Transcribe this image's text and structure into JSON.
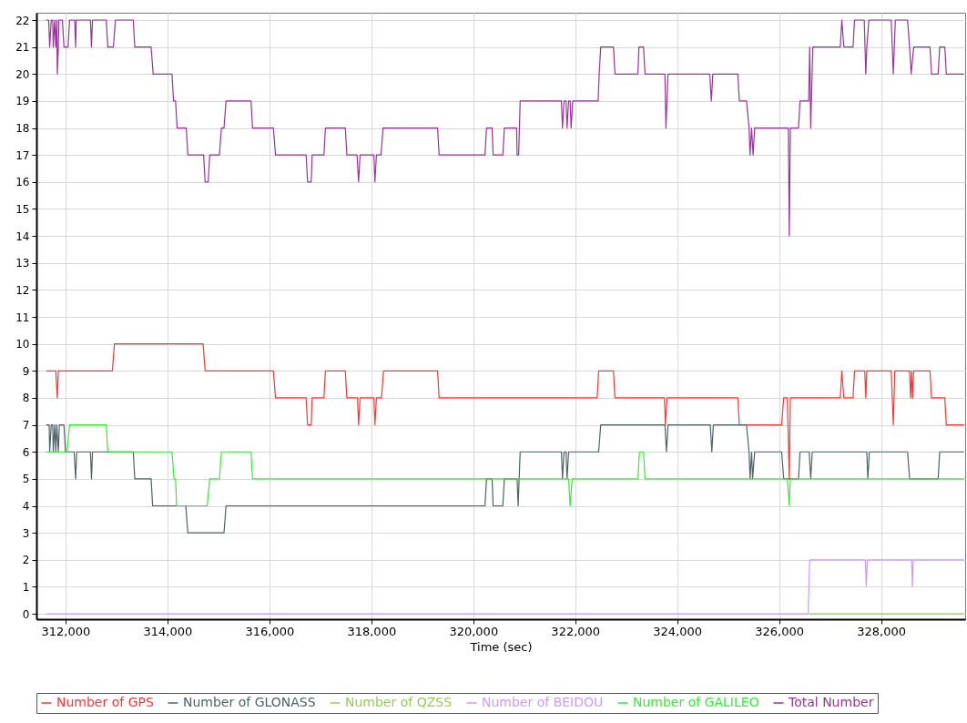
{
  "chart_data": {
    "type": "line",
    "xlabel": "Time (sec)",
    "xlim": [
      311430,
      329650
    ],
    "xticks": [
      {
        "value": 312000,
        "label": "312,000"
      },
      {
        "value": 314000,
        "label": "314,000"
      },
      {
        "value": 316000,
        "label": "316,000"
      },
      {
        "value": 318000,
        "label": "318,000"
      },
      {
        "value": 320000,
        "label": "320,000"
      },
      {
        "value": 322000,
        "label": "322,000"
      },
      {
        "value": 324000,
        "label": "324,000"
      },
      {
        "value": 326000,
        "label": "326,000"
      },
      {
        "value": 328000,
        "label": "328,000"
      }
    ],
    "ylim": [
      -0.2,
      22.27
    ],
    "yticks": [
      0,
      1,
      2,
      3,
      4,
      5,
      6,
      7,
      8,
      9,
      10,
      11,
      12,
      13,
      14,
      15,
      16,
      17,
      18,
      19,
      20,
      21,
      22
    ],
    "grid": true,
    "legend": "bottom",
    "marker": "none",
    "line_style": "solid",
    "series": [
      {
        "name": "Number of GPS",
        "color": "#ff3333",
        "x": [
          311630,
          311810,
          311840,
          311860,
          312920,
          312960,
          314700,
          314740,
          316080,
          316120,
          316720,
          316750,
          316820,
          316840,
          317070,
          317100,
          317490,
          317520,
          317730,
          317750,
          317780,
          318050,
          318070,
          318100,
          318200,
          318240,
          319300,
          319330,
          322430,
          322460,
          322750,
          322780,
          323750,
          323770,
          323800,
          325190,
          325220,
          326050,
          326090,
          326160,
          326200,
          326220,
          327200,
          327230,
          327270,
          327450,
          327480,
          327680,
          327700,
          327720,
          328200,
          328240,
          328270,
          328560,
          328580,
          328600,
          328620,
          328640,
          328960,
          328990,
          329250,
          329280,
          329620
        ],
        "values": [
          9,
          9,
          8,
          9,
          9,
          10,
          10,
          9,
          9,
          8,
          8,
          7,
          7,
          8,
          8,
          9,
          9,
          8,
          8,
          7,
          8,
          8,
          7,
          8,
          8,
          9,
          9,
          8,
          8,
          9,
          9,
          8,
          8,
          7,
          8,
          8,
          7,
          7,
          8,
          8,
          5,
          8,
          8,
          9,
          8,
          8,
          9,
          9,
          8,
          9,
          9,
          7,
          9,
          9,
          8,
          9,
          8,
          9,
          9,
          8,
          8,
          7,
          7
        ]
      },
      {
        "name": "Number of GLONASS",
        "color": "#4d6466",
        "x": [
          311630,
          311680,
          311690,
          311720,
          311750,
          311760,
          311790,
          311810,
          311830,
          311860,
          311880,
          311970,
          312000,
          312170,
          312200,
          312220,
          312490,
          312510,
          312530,
          313330,
          313360,
          313680,
          313710,
          314360,
          314400,
          315110,
          315150,
          320230,
          320260,
          320370,
          320390,
          320580,
          320610,
          320860,
          320880,
          320920,
          321730,
          321750,
          321780,
          321820,
          321840,
          321870,
          322460,
          322500,
          323760,
          323790,
          323820,
          324650,
          324680,
          324710,
          325360,
          325410,
          325430,
          325460,
          325480,
          325520,
          326050,
          326090,
          326380,
          326410,
          326590,
          326620,
          326650,
          327720,
          327740,
          327770,
          328520,
          328560,
          329120,
          329150,
          329620
        ],
        "values": [
          7,
          7,
          6,
          7,
          7,
          6,
          7,
          6,
          7,
          6,
          7,
          7,
          6,
          6,
          5,
          6,
          6,
          5,
          6,
          6,
          5,
          5,
          4,
          4,
          3,
          3,
          4,
          4,
          5,
          5,
          4,
          4,
          5,
          5,
          4,
          6,
          6,
          5,
          6,
          6,
          5,
          6,
          6,
          7,
          7,
          6,
          7,
          7,
          6,
          7,
          7,
          6,
          5,
          6,
          5,
          6,
          6,
          5,
          5,
          6,
          6,
          5,
          6,
          6,
          5,
          6,
          6,
          5,
          5,
          6,
          6
        ]
      },
      {
        "name": "Number of QZSS",
        "color": "#99cc55",
        "x": [
          326600,
          329620
        ],
        "values": [
          0,
          0
        ]
      },
      {
        "name": "Number of BEIDOU",
        "color": "#cc99ff",
        "x": [
          311630,
          326570,
          326600,
          327690,
          327710,
          327730,
          328600,
          328615,
          328630,
          329620
        ],
        "values": [
          0,
          0,
          2,
          2,
          1,
          2,
          2,
          1,
          2,
          2
        ]
      },
      {
        "name": "Number of GALILEO",
        "color": "#33ee33",
        "x": [
          311630,
          312030,
          312080,
          312800,
          312830,
          314090,
          314130,
          314160,
          314180,
          314780,
          314830,
          315020,
          315060,
          315640,
          315670,
          321870,
          321900,
          321940,
          323230,
          323260,
          323340,
          323370,
          326160,
          326200,
          326220,
          329620
        ],
        "values": [
          6,
          6,
          7,
          7,
          6,
          6,
          5,
          5,
          4,
          4,
          5,
          5,
          6,
          6,
          5,
          5,
          4,
          5,
          5,
          6,
          6,
          5,
          5,
          4,
          5,
          5
        ]
      },
      {
        "name": "Total Number",
        "color": "#993399",
        "x": [
          311630,
          311670,
          311690,
          311720,
          311750,
          311760,
          311790,
          311810,
          311830,
          311840,
          311860,
          311870,
          311940,
          311970,
          312050,
          312080,
          312180,
          312200,
          312210,
          312490,
          312510,
          312530,
          312800,
          312830,
          312940,
          312980,
          313330,
          313360,
          313680,
          313720,
          314090,
          314120,
          314160,
          314190,
          314370,
          314400,
          314710,
          314740,
          314800,
          314830,
          315020,
          315060,
          315110,
          315150,
          315640,
          315670,
          316080,
          316120,
          316720,
          316750,
          316820,
          316840,
          317070,
          317100,
          317490,
          317520,
          317720,
          317750,
          317780,
          318050,
          318070,
          318100,
          318190,
          318230,
          319300,
          319330,
          320230,
          320260,
          320370,
          320390,
          320580,
          320610,
          320850,
          320860,
          320890,
          320920,
          321730,
          321750,
          321780,
          321820,
          321840,
          321870,
          321900,
          321920,
          321950,
          322450,
          322470,
          322500,
          322750,
          322780,
          323230,
          323250,
          323340,
          323370,
          323760,
          323780,
          323820,
          324640,
          324670,
          324700,
          325190,
          325220,
          325360,
          325410,
          325430,
          325460,
          325490,
          325520,
          326180,
          326200,
          326220,
          326380,
          326410,
          326580,
          326600,
          326620,
          326660,
          327200,
          327230,
          327270,
          327450,
          327480,
          327670,
          327700,
          327720,
          327760,
          328200,
          328240,
          328280,
          328520,
          328560,
          328590,
          328640,
          328960,
          328990,
          329120,
          329150,
          329250,
          329280,
          329620
        ],
        "values": [
          22,
          22,
          21,
          22,
          22,
          21,
          22,
          21,
          22,
          20,
          21,
          22,
          22,
          21,
          21,
          22,
          22,
          21,
          22,
          22,
          21,
          22,
          22,
          21,
          21,
          22,
          22,
          21,
          21,
          20,
          20,
          19,
          19,
          18,
          18,
          17,
          17,
          16,
          16,
          17,
          17,
          18,
          18,
          19,
          19,
          18,
          18,
          17,
          17,
          16,
          16,
          17,
          17,
          18,
          18,
          17,
          17,
          16,
          17,
          17,
          16,
          17,
          17,
          18,
          18,
          17,
          17,
          18,
          18,
          17,
          17,
          18,
          18,
          17,
          17,
          19,
          19,
          18,
          19,
          19,
          18,
          19,
          19,
          18,
          19,
          19,
          20,
          21,
          21,
          20,
          20,
          21,
          21,
          20,
          20,
          18,
          20,
          20,
          19,
          20,
          20,
          19,
          19,
          18,
          17,
          18,
          17,
          18,
          18,
          14,
          18,
          18,
          19,
          19,
          21,
          18,
          21,
          21,
          22,
          21,
          21,
          22,
          22,
          20,
          21,
          22,
          22,
          20,
          22,
          22,
          21,
          20,
          21,
          21,
          20,
          20,
          21,
          21,
          20,
          20
        ]
      }
    ]
  }
}
